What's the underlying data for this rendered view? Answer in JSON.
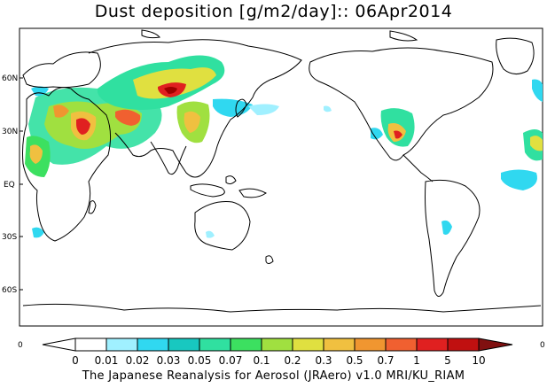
{
  "title": "Dust deposition [g/m2/day]:: 06Apr2014",
  "footer": "The Japanese Reanalysis for Aerosol (JRAero) v1.0 MRI/KU_RIAM",
  "map": {
    "lat_labels": [
      "60N",
      "30N",
      "EQ",
      "30S",
      "60S"
    ],
    "lat_values": [
      60,
      30,
      0,
      -30,
      -60
    ],
    "lon_range": [
      -20,
      340
    ],
    "lat_range": [
      -90,
      90
    ],
    "land_color": "#ffffff",
    "coast_color": "#000000"
  },
  "colorbar": {
    "end_labels": [
      "0",
      "0"
    ],
    "tick_labels": [
      "0",
      "0.01",
      "0.02",
      "0.03",
      "0.05",
      "0.07",
      "0.1",
      "0.2",
      "0.3",
      "0.5",
      "0.7",
      "1",
      "5",
      "10"
    ],
    "colors": [
      "#ffffff",
      "#a0f0ff",
      "#30d8f0",
      "#18c8c0",
      "#30e0a0",
      "#3ce060",
      "#a0e040",
      "#e0e040",
      "#f0c040",
      "#f09630",
      "#f06030",
      "#e02020",
      "#c01010",
      "#a00000",
      "#801010"
    ]
  }
}
